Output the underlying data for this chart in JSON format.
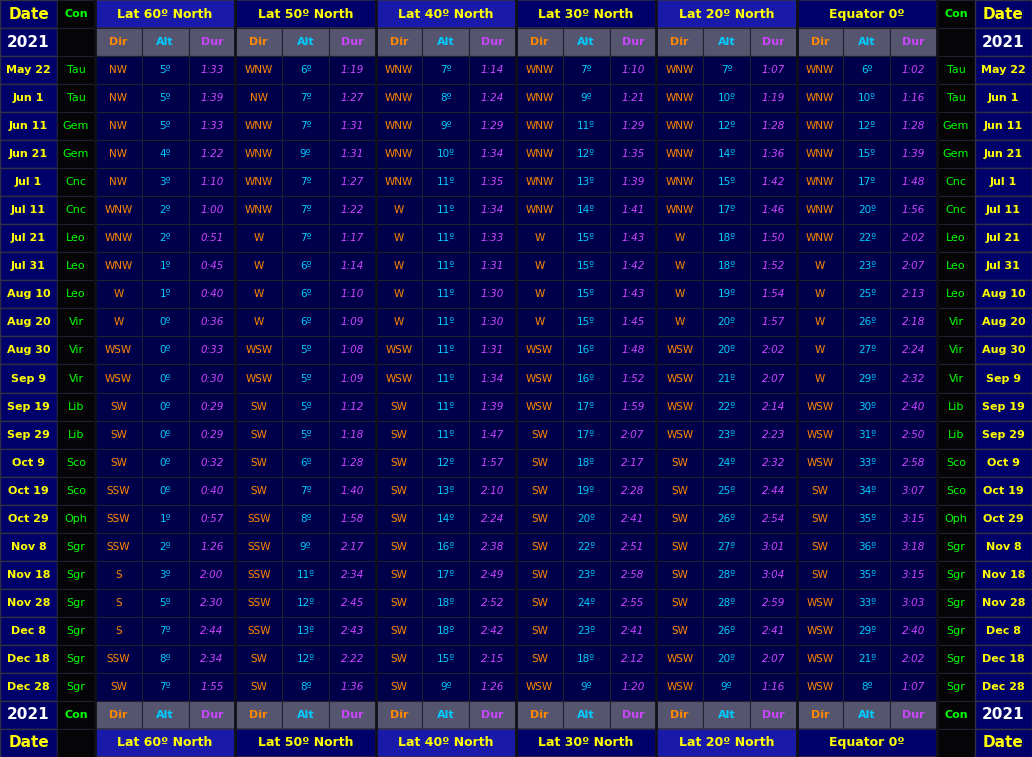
{
  "lat_labels": [
    "Lat 60º North",
    "Lat 50º North",
    "Lat 40º North",
    "Lat 30º North",
    "Lat 20º North",
    "Equator 0º"
  ],
  "year": "2021",
  "rows": [
    [
      "May 22",
      "Tau",
      "NW",
      "5º",
      "1:33",
      "WNW",
      "6º",
      "1:19",
      "WNW",
      "7º",
      "1:14",
      "WNW",
      "7º",
      "1:10",
      "WNW",
      "7º",
      "1:07",
      "WNW",
      "6º",
      "1:02",
      "Tau",
      "May 22"
    ],
    [
      "Jun 1",
      "Tau",
      "NW",
      "5º",
      "1:39",
      "NW",
      "7º",
      "1:27",
      "WNW",
      "8º",
      "1:24",
      "WNW",
      "9º",
      "1:21",
      "WNW",
      "10º",
      "1:19",
      "WNW",
      "10º",
      "1:16",
      "Tau",
      "Jun 1"
    ],
    [
      "Jun 11",
      "Gem",
      "NW",
      "5º",
      "1:33",
      "WNW",
      "7º",
      "1:31",
      "WNW",
      "9º",
      "1:29",
      "WNW",
      "11º",
      "1:29",
      "WNW",
      "12º",
      "1:28",
      "WNW",
      "12º",
      "1:28",
      "Gem",
      "Jun 11"
    ],
    [
      "Jun 21",
      "Gem",
      "NW",
      "4º",
      "1:22",
      "WNW",
      "9º",
      "1:31",
      "WNW",
      "10º",
      "1:34",
      "WNW",
      "12º",
      "1:35",
      "WNW",
      "14º",
      "1:36",
      "WNW",
      "15º",
      "1:39",
      "Gem",
      "Jun 21"
    ],
    [
      "Jul 1",
      "Cnc",
      "NW",
      "3º",
      "1:10",
      "WNW",
      "7º",
      "1:27",
      "WNW",
      "11º",
      "1:35",
      "WNW",
      "13º",
      "1:39",
      "WNW",
      "15º",
      "1:42",
      "WNW",
      "17º",
      "1:48",
      "Cnc",
      "Jul 1"
    ],
    [
      "Jul 11",
      "Cnc",
      "WNW",
      "2º",
      "1:00",
      "WNW",
      "7º",
      "1:22",
      "W",
      "11º",
      "1:34",
      "WNW",
      "14º",
      "1:41",
      "WNW",
      "17º",
      "1:46",
      "WNW",
      "20º",
      "1:56",
      "Cnc",
      "Jul 11"
    ],
    [
      "Jul 21",
      "Leo",
      "WNW",
      "2º",
      "0:51",
      "W",
      "7º",
      "1:17",
      "W",
      "11º",
      "1:33",
      "W",
      "15º",
      "1:43",
      "W",
      "18º",
      "1:50",
      "WNW",
      "22º",
      "2:02",
      "Leo",
      "Jul 21"
    ],
    [
      "Jul 31",
      "Leo",
      "WNW",
      "1º",
      "0:45",
      "W",
      "6º",
      "1:14",
      "W",
      "11º",
      "1:31",
      "W",
      "15º",
      "1:42",
      "W",
      "18º",
      "1:52",
      "W",
      "23º",
      "2:07",
      "Leo",
      "Jul 31"
    ],
    [
      "Aug 10",
      "Leo",
      "W",
      "1º",
      "0:40",
      "W",
      "6º",
      "1:10",
      "W",
      "11º",
      "1:30",
      "W",
      "15º",
      "1:43",
      "W",
      "19º",
      "1:54",
      "W",
      "25º",
      "2:13",
      "Leo",
      "Aug 10"
    ],
    [
      "Aug 20",
      "Vir",
      "W",
      "0º",
      "0:36",
      "W",
      "6º",
      "1:09",
      "W",
      "11º",
      "1:30",
      "W",
      "15º",
      "1:45",
      "W",
      "20º",
      "1:57",
      "W",
      "26º",
      "2:18",
      "Vir",
      "Aug 20"
    ],
    [
      "Aug 30",
      "Vir",
      "WSW",
      "0º",
      "0:33",
      "WSW",
      "5º",
      "1:08",
      "WSW",
      "11º",
      "1:31",
      "WSW",
      "16º",
      "1:48",
      "WSW",
      "20º",
      "2:02",
      "W",
      "27º",
      "2:24",
      "Vir",
      "Aug 30"
    ],
    [
      "Sep 9",
      "Vir",
      "WSW",
      "0º",
      "0:30",
      "WSW",
      "5º",
      "1:09",
      "WSW",
      "11º",
      "1:34",
      "WSW",
      "16º",
      "1:52",
      "WSW",
      "21º",
      "2:07",
      "W",
      "29º",
      "2:32",
      "Vir",
      "Sep 9"
    ],
    [
      "Sep 19",
      "Lib",
      "SW",
      "0º",
      "0:29",
      "SW",
      "5º",
      "1:12",
      "SW",
      "11º",
      "1:39",
      "WSW",
      "17º",
      "1:59",
      "WSW",
      "22º",
      "2:14",
      "WSW",
      "30º",
      "2:40",
      "Lib",
      "Sep 19"
    ],
    [
      "Sep 29",
      "Lib",
      "SW",
      "0º",
      "0:29",
      "SW",
      "5º",
      "1:18",
      "SW",
      "11º",
      "1:47",
      "SW",
      "17º",
      "2:07",
      "WSW",
      "23º",
      "2:23",
      "WSW",
      "31º",
      "2:50",
      "Lib",
      "Sep 29"
    ],
    [
      "Oct 9",
      "Sco",
      "SW",
      "0º",
      "0:32",
      "SW",
      "6º",
      "1:28",
      "SW",
      "12º",
      "1:57",
      "SW",
      "18º",
      "2:17",
      "SW",
      "24º",
      "2:32",
      "WSW",
      "33º",
      "2:58",
      "Sco",
      "Oct 9"
    ],
    [
      "Oct 19",
      "Sco",
      "SSW",
      "0º",
      "0:40",
      "SW",
      "7º",
      "1:40",
      "SW",
      "13º",
      "2:10",
      "SW",
      "19º",
      "2:28",
      "SW",
      "25º",
      "2:44",
      "SW",
      "34º",
      "3:07",
      "Sco",
      "Oct 19"
    ],
    [
      "Oct 29",
      "Oph",
      "SSW",
      "1º",
      "0:57",
      "SSW",
      "8º",
      "1:58",
      "SW",
      "14º",
      "2:24",
      "SW",
      "20º",
      "2:41",
      "SW",
      "26º",
      "2:54",
      "SW",
      "35º",
      "3:15",
      "Oph",
      "Oct 29"
    ],
    [
      "Nov 8",
      "Sgr",
      "SSW",
      "2º",
      "1:26",
      "SSW",
      "9º",
      "2:17",
      "SW",
      "16º",
      "2:38",
      "SW",
      "22º",
      "2:51",
      "SW",
      "27º",
      "3:01",
      "SW",
      "36º",
      "3:18",
      "Sgr",
      "Nov 8"
    ],
    [
      "Nov 18",
      "Sgr",
      "S",
      "3º",
      "2:00",
      "SSW",
      "11º",
      "2:34",
      "SW",
      "17º",
      "2:49",
      "SW",
      "23º",
      "2:58",
      "SW",
      "28º",
      "3:04",
      "SW",
      "35º",
      "3:15",
      "Sgr",
      "Nov 18"
    ],
    [
      "Nov 28",
      "Sgr",
      "S",
      "5º",
      "2:30",
      "SSW",
      "12º",
      "2:45",
      "SW",
      "18º",
      "2:52",
      "SW",
      "24º",
      "2:55",
      "SW",
      "28º",
      "2:59",
      "WSW",
      "33º",
      "3:03",
      "Sgr",
      "Nov 28"
    ],
    [
      "Dec 8",
      "Sgr",
      "S",
      "7º",
      "2:44",
      "SSW",
      "13º",
      "2:43",
      "SW",
      "18º",
      "2:42",
      "SW",
      "23º",
      "2:41",
      "SW",
      "26º",
      "2:41",
      "WSW",
      "29º",
      "2:40",
      "Sgr",
      "Dec 8"
    ],
    [
      "Dec 18",
      "Sgr",
      "SSW",
      "8º",
      "2:34",
      "SW",
      "12º",
      "2:22",
      "SW",
      "15º",
      "2:15",
      "SW",
      "18º",
      "2:12",
      "WSW",
      "20º",
      "2:07",
      "WSW",
      "21º",
      "2:02",
      "Sgr",
      "Dec 18"
    ],
    [
      "Dec 28",
      "Sgr",
      "SW",
      "7º",
      "1:55",
      "SW",
      "8º",
      "1:36",
      "SW",
      "9º",
      "1:26",
      "WSW",
      "9º",
      "1:20",
      "WSW",
      "9º",
      "1:16",
      "WSW",
      "8º",
      "1:07",
      "Sgr",
      "Dec 28"
    ]
  ],
  "bg_color": "#050508",
  "header_blue_bright": "#1a1aaa",
  "header_blue_dark": "#00006a",
  "subheader_bg": "#555570",
  "cell_bg_blue": "#00004a",
  "cell_bg_black": "#050508",
  "date_bg": "#00006a",
  "con_bg": "#050508",
  "date_color": "#ffff00",
  "year_color": "#ffffff",
  "con_color": "#00ff00",
  "dir_color": "#ff8800",
  "alt_color": "#00ccff",
  "dur_color": "#cc44ff",
  "header_text_color": "#ffff00",
  "subheader_dir_color": "#00ccff",
  "subheader_alt_color": "#00ccff",
  "subheader_dur_color": "#00ccff",
  "edge_color": "#202030",
  "thick_edge_color": "#303045"
}
